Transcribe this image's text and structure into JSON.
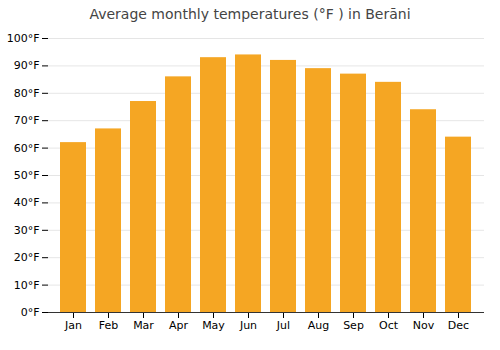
{
  "chart_data": {
    "type": "bar",
    "title": "Average monthly temperatures (°F ) in Berāni",
    "categories": [
      "Jan",
      "Feb",
      "Mar",
      "Apr",
      "May",
      "Jun",
      "Jul",
      "Aug",
      "Sep",
      "Oct",
      "Nov",
      "Dec"
    ],
    "values": [
      62,
      67,
      77,
      86,
      93,
      94,
      92,
      89,
      87,
      84,
      74,
      64
    ],
    "color": "#F5A623",
    "ylim": [
      0,
      100
    ],
    "yticks": [
      {
        "value": 0,
        "label": "0°F"
      },
      {
        "value": 10,
        "label": "10°F"
      },
      {
        "value": 20,
        "label": "20°F"
      },
      {
        "value": 30,
        "label": "30°F"
      },
      {
        "value": 40,
        "label": "40°F"
      },
      {
        "value": 50,
        "label": "50°F"
      },
      {
        "value": 60,
        "label": "60°F"
      },
      {
        "value": 70,
        "label": "70°F"
      },
      {
        "value": 80,
        "label": "80°F"
      },
      {
        "value": 90,
        "label": "90°F"
      },
      {
        "value": 100,
        "label": "100°F"
      }
    ],
    "grid": true
  }
}
